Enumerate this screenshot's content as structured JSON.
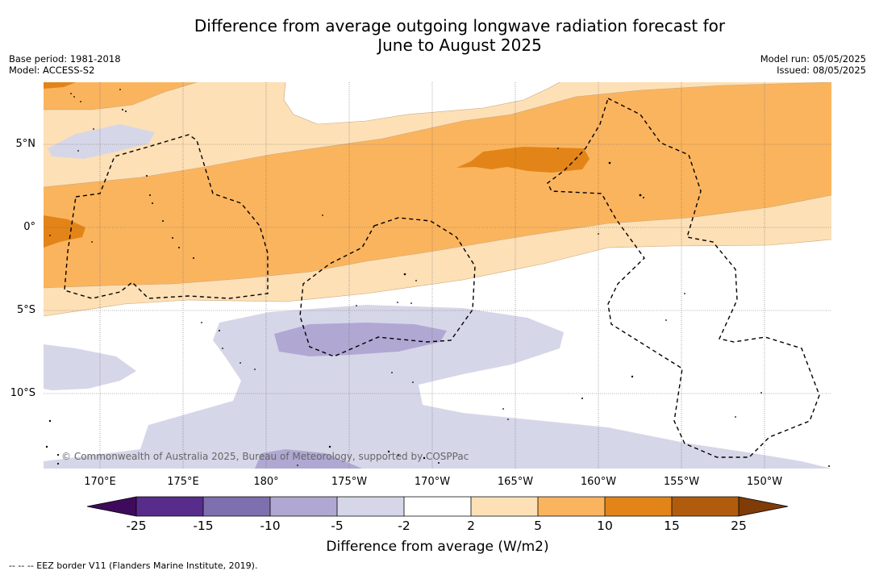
{
  "header": {
    "title_line1": "Difference from average outgoing longwave radiation forecast for",
    "title_line2": "June to August 2025",
    "base_period": "Base period: 1981-2018",
    "model": "Model: ACCESS-S2",
    "model_run": "Model run: 05/05/2025",
    "issued": "Issued: 08/05/2025"
  },
  "map": {
    "lat_labels": [
      "5°N",
      "0°",
      "5°S",
      "10°S"
    ],
    "lon_labels": [
      "170°E",
      "175°E",
      "180°",
      "175°W",
      "170°W",
      "165°W",
      "160°W",
      "155°W",
      "150°W"
    ],
    "copyright": "© Commonwealth of Australia 2025, Bureau of Meteorology, supported by COSPPac"
  },
  "colorbar": {
    "ticks": [
      "-25",
      "-15",
      "-10",
      "-5",
      "-2",
      "2",
      "5",
      "10",
      "15",
      "25"
    ],
    "colors": [
      "#3f0a5c",
      "#582c8b",
      "#7e6fae",
      "#b0a8d2",
      "#d6d6e9",
      "#ffffff",
      "#fde0b6",
      "#fbb45e",
      "#e28417",
      "#b15c0d",
      "#7f3b08"
    ],
    "label": "Difference from average (W/m2)"
  },
  "legend": {
    "eez": "--  --  -- EEZ border V11 (Flanders Marine Institute, 2019)."
  }
}
